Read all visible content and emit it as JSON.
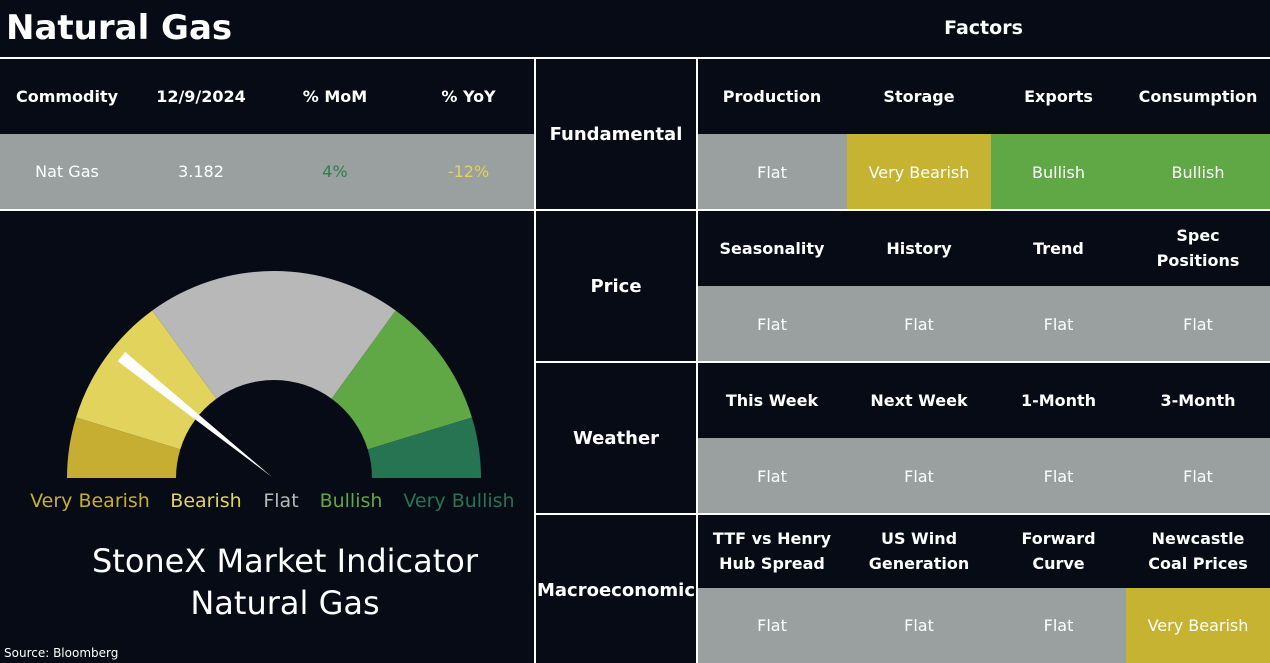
{
  "header": {
    "title": "Natural Gas",
    "factors_title": "Factors"
  },
  "commodity_table": {
    "columns": [
      "Commodity",
      "12/9/2024",
      "% MoM",
      "% YoY"
    ],
    "row": [
      "Nat Gas",
      "3.182",
      "4%",
      "-12%"
    ]
  },
  "gauge": {
    "labels": [
      "Very Bearish",
      "Bearish",
      "Flat",
      "Bullish",
      "Very Bullish"
    ],
    "colors": [
      "#c6ae33",
      "#e1d35c",
      "#b8b8b8",
      "#5fa845",
      "#267452"
    ],
    "title": [
      "StoneX Market Indicator",
      "Natural Gas"
    ]
  },
  "source": "Source: Bloomberg",
  "factors": [
    {
      "group": "Fundamental",
      "names": [
        "Production",
        "Storage",
        "Exports",
        "Consumption"
      ],
      "ratings": [
        "Flat",
        "Very Bearish",
        "Bullish",
        "Bullish"
      ],
      "colors": [
        "#9aa09f",
        "#c6b332",
        "#5fa845",
        "#5fa845"
      ]
    },
    {
      "group": "Price",
      "names": [
        "Seasonality",
        "History",
        "Trend",
        "Spec Positions"
      ],
      "ratings": [
        "Flat",
        "Flat",
        "Flat",
        "Flat"
      ],
      "colors": [
        "#9aa09f",
        "#9aa09f",
        "#9aa09f",
        "#9aa09f"
      ]
    },
    {
      "group": "Weather",
      "names": [
        "This Week",
        "Next Week",
        "1-Month",
        "3-Month"
      ],
      "ratings": [
        "Flat",
        "Flat",
        "Flat",
        "Flat"
      ],
      "colors": [
        "#9aa09f",
        "#9aa09f",
        "#9aa09f",
        "#9aa09f"
      ]
    },
    {
      "group": "Macroeconomic",
      "names": [
        "TTF vs Henry Hub Spread",
        "US Wind Generation",
        "Forward Curve",
        "Newcastle Coal Prices"
      ],
      "ratings": [
        "Flat",
        "Flat",
        "Flat",
        "Very Bearish"
      ],
      "colors": [
        "#9aa09f",
        "#9aa09f",
        "#9aa09f",
        "#c6b332"
      ]
    }
  ]
}
